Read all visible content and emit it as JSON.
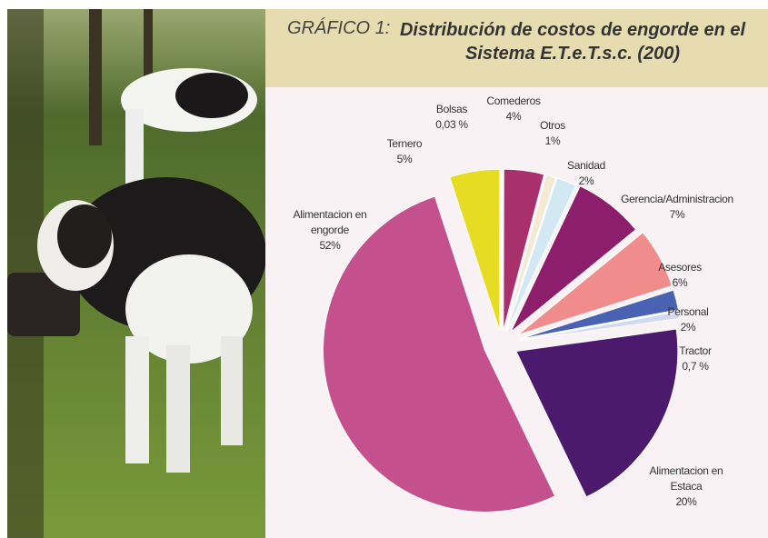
{
  "chart_data": {
    "type": "pie",
    "figure_label": "GRÁFICO 1:",
    "title": "Distribución de costos de engorde en el Sistema E.T.e.T.s.c. (200)",
    "categories": [
      "Ternero",
      "Bolsas",
      "Comederos",
      "Otros",
      "Sanidad",
      "Gerencia/Administracion",
      "Asesores",
      "Personal",
      "Tractor",
      "Alimentacion en Estaca",
      "Alimentacion en engorde"
    ],
    "values": [
      5,
      0.03,
      4,
      1,
      2,
      7,
      6,
      2,
      0.7,
      20,
      52
    ],
    "value_labels": [
      "5%",
      "0,03 %",
      "4%",
      "1%",
      "2%",
      "7%",
      "6%",
      "2%",
      "0,7 %",
      "20%",
      "52%"
    ],
    "colors": [
      "#e6dc22",
      "#c6b6d6",
      "#a8306c",
      "#f2ead2",
      "#d2e8f2",
      "#8c1e6c",
      "#f08c8c",
      "#4a62b2",
      "#d2daf2",
      "#4c1a6c",
      "#c4508e"
    ]
  }
}
